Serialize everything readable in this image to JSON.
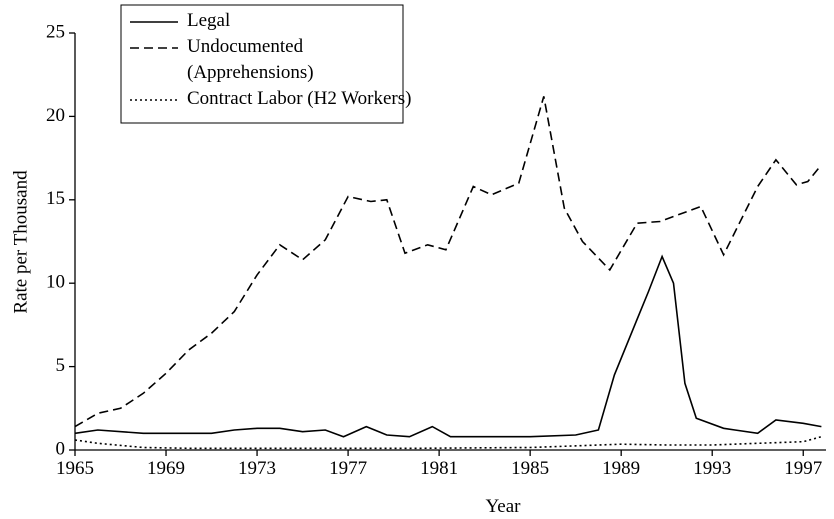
{
  "chart_data": {
    "type": "line",
    "xlabel": "Year",
    "ylabel": "Rate per Thousand",
    "xlim": [
      1965,
      1998
    ],
    "xticks": [
      1965,
      1969,
      1973,
      1977,
      1981,
      1985,
      1989,
      1993,
      1997
    ],
    "ylim": [
      0,
      25
    ],
    "yticks": [
      0,
      5,
      10,
      15,
      20,
      25
    ],
    "legend": "upper left",
    "series": [
      {
        "name": "Legal",
        "color": "#000000",
        "dash": "solid",
        "x": [
          1965,
          1966,
          1968,
          1970,
          1971,
          1972,
          1973,
          1974,
          1975,
          1976,
          1976.8,
          1977.8,
          1978.7,
          1979.7,
          1980.7,
          1981.5,
          1985,
          1987,
          1988,
          1988.7,
          1989.6,
          1990.2,
          1990.8,
          1991.3,
          1991.8,
          1992.3,
          1993.5,
          1994,
          1995,
          1995.8,
          1997,
          1997.8
        ],
        "values": [
          1.0,
          1.2,
          1.0,
          1.0,
          1.0,
          1.2,
          1.3,
          1.3,
          1.1,
          1.2,
          0.8,
          1.4,
          0.9,
          0.8,
          1.4,
          0.8,
          0.8,
          0.9,
          1.2,
          4.5,
          7.5,
          9.5,
          11.6,
          10.0,
          4.0,
          1.9,
          1.3,
          1.2,
          1.0,
          1.8,
          1.6,
          1.4
        ]
      },
      {
        "name": "Undocumented\n(Apprehensions)",
        "color": "#000000",
        "dash": "dashed",
        "x": [
          1965,
          1966,
          1967,
          1968,
          1969,
          1970,
          1971,
          1972,
          1973,
          1974,
          1975,
          1976,
          1977,
          1978,
          1978.7,
          1979.5,
          1980.5,
          1981.3,
          1982.5,
          1983.3,
          1984.5,
          1985.6,
          1986.5,
          1987.3,
          1988.5,
          1989.7,
          1990.7,
          1992.5,
          1993.5,
          1995,
          1995.8,
          1996.7,
          1997.2,
          1997.8
        ],
        "values": [
          1.4,
          2.2,
          2.5,
          3.4,
          4.6,
          6.0,
          7.0,
          8.3,
          10.5,
          12.3,
          11.4,
          12.6,
          15.2,
          14.9,
          15.0,
          11.8,
          12.3,
          12.0,
          15.8,
          15.3,
          16.0,
          21.2,
          14.5,
          12.5,
          10.8,
          13.6,
          13.7,
          14.6,
          11.7,
          15.8,
          17.4,
          15.9,
          16.1,
          17.1
        ]
      },
      {
        "name": "Contract Labor (H2 Workers)",
        "color": "#000000",
        "dash": "dotted",
        "x": [
          1965,
          1966,
          1968,
          1970,
          1980,
          1985,
          1989,
          1991,
          1993,
          1995,
          1997,
          1997.8
        ],
        "values": [
          0.6,
          0.4,
          0.15,
          0.1,
          0.1,
          0.15,
          0.35,
          0.3,
          0.3,
          0.4,
          0.5,
          0.8
        ]
      }
    ]
  }
}
